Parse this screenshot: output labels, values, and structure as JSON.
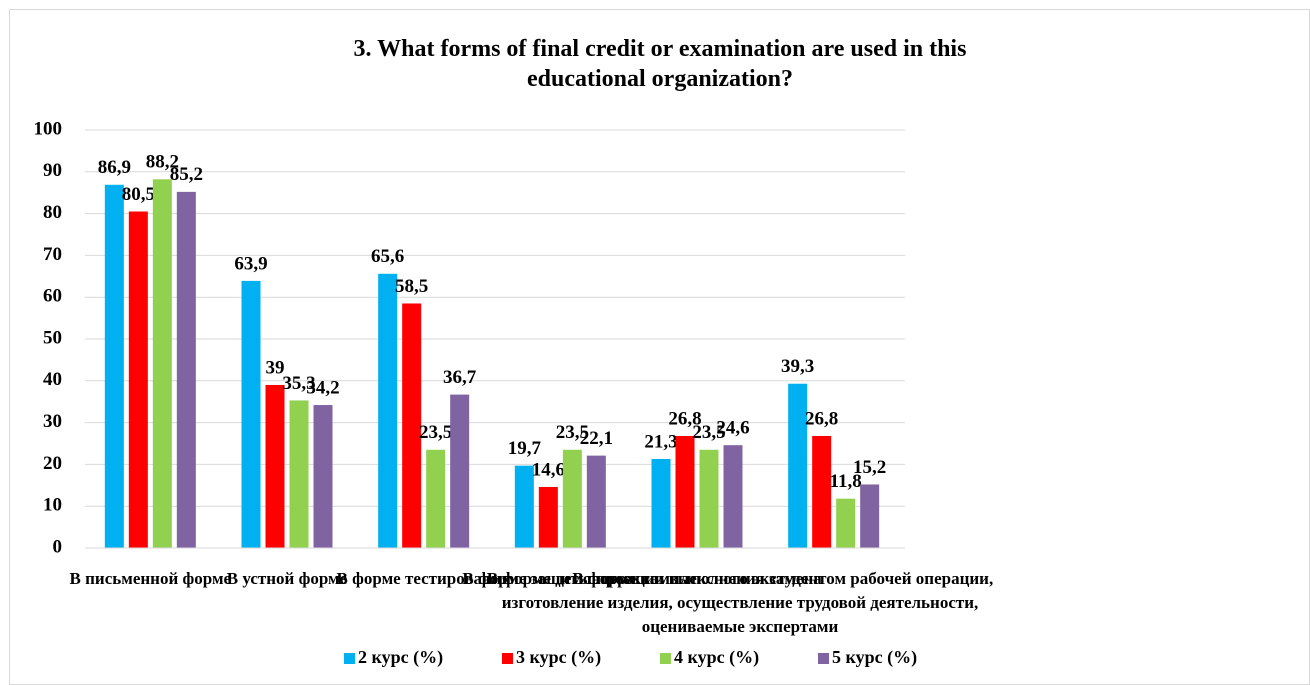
{
  "chart_data": {
    "type": "bar",
    "title": "3. What forms of final credit or examination are used in this educational organization?",
    "categories": [
      "В письменной форме",
      "В устной форме",
      "В форме тестирования",
      "В форме защиты проекта",
      "В форме комплексного экзамена",
      "В форме демонстрации выполнения студентом рабочей операции, изготовление изделия, осуществление трудовой деятельности, оцениваемые экспертами"
    ],
    "series": [
      {
        "name": "2 курс (%)",
        "color": "#00b0f0",
        "values": [
          86.9,
          63.9,
          65.6,
          19.7,
          21.3,
          39.3
        ],
        "value_labels": [
          "86,9",
          "63,9",
          "65,6",
          "19,7",
          "21,3",
          "39,3"
        ]
      },
      {
        "name": "3 курс (%)",
        "color": "#ff0000",
        "values": [
          80.5,
          39,
          58.5,
          14.6,
          26.8,
          26.8
        ],
        "value_labels": [
          "80,5",
          "39",
          "58,5",
          "14,6",
          "26,8",
          "26,8"
        ]
      },
      {
        "name": "4 курс (%)",
        "color": "#92d050",
        "values": [
          88.2,
          35.3,
          23.5,
          23.5,
          23.5,
          11.8
        ],
        "value_labels": [
          "88,2",
          "35,3",
          "23,5",
          "23,5",
          "23,5",
          "11,8"
        ]
      },
      {
        "name": "5 курс (%)",
        "color": "#8064a2",
        "values": [
          85.2,
          34.2,
          36.7,
          22.1,
          24.6,
          15.2
        ],
        "value_labels": [
          "85,2",
          "34,2",
          "36,7",
          "22,1",
          "24,6",
          "15,2"
        ]
      }
    ],
    "ylim": [
      0,
      100
    ],
    "yticks": [
      0,
      10,
      20,
      30,
      40,
      50,
      60,
      70,
      80,
      90,
      100
    ],
    "grid": true,
    "legend": "bottom"
  }
}
